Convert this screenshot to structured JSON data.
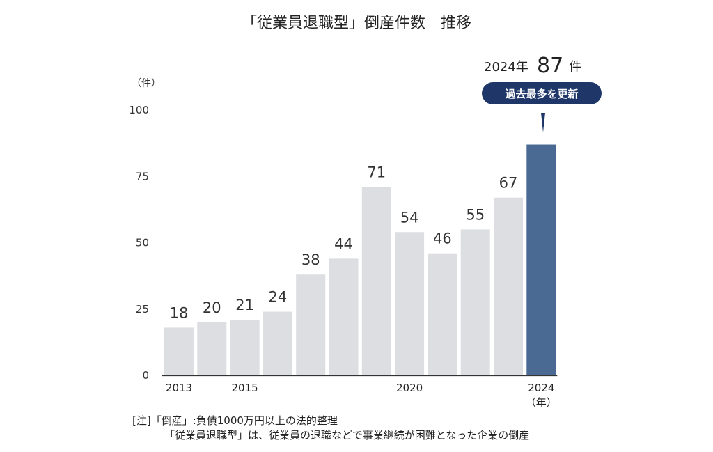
{
  "chart_data": {
    "type": "bar",
    "title": "「従業員退職型」倒産件数　推移",
    "ylabel": "（件）",
    "xunit": "（年）",
    "ylim": [
      0,
      100
    ],
    "yticks": [
      0,
      25,
      50,
      75,
      100
    ],
    "categories": [
      "2013",
      "2014",
      "2015",
      "2016",
      "2017",
      "2018",
      "2019",
      "2020",
      "2021",
      "2022",
      "2023",
      "2024"
    ],
    "xtick_labels": [
      "2013",
      "",
      "2015",
      "",
      "",
      "",
      "",
      "2020",
      "",
      "",
      "",
      "2024"
    ],
    "values": [
      18,
      20,
      21,
      24,
      38,
      44,
      71,
      54,
      46,
      55,
      67,
      87
    ],
    "data_labels": [
      "18",
      "20",
      "21",
      "24",
      "38",
      "44",
      "71",
      "54",
      "46",
      "55",
      "67",
      ""
    ],
    "highlight_index": 11,
    "colors": {
      "bar": "#dcdee1",
      "highlight": "#4a6a94",
      "badge": "#1e3768"
    }
  },
  "callout": {
    "year_text": "2024年",
    "value_text": "87",
    "unit_text": "件",
    "badge_text": "過去最多を更新"
  },
  "notes": {
    "line1": "[注]「倒産」:負債1000万円以上の法的整理",
    "line2": "「従業員退職型」は、従業員の退職などで事業継続が困難となった企業の倒産"
  }
}
